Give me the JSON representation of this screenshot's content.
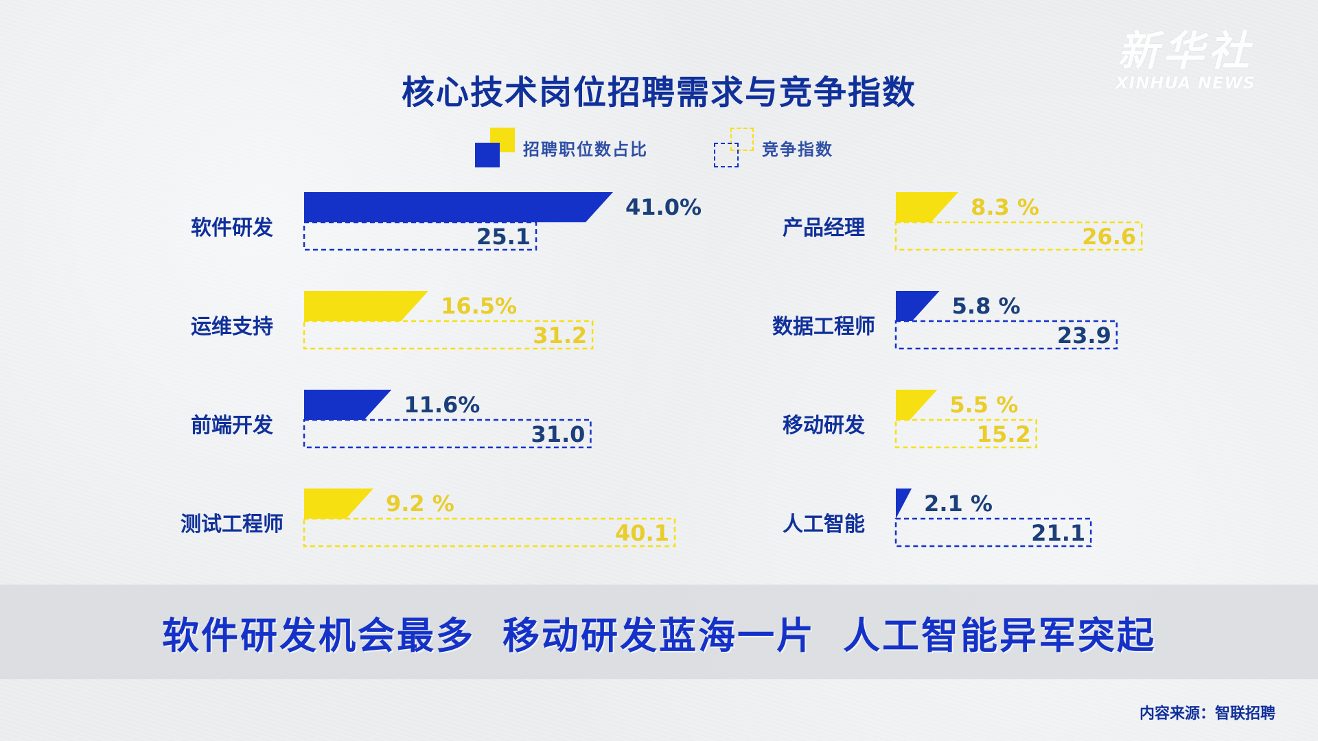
{
  "logo": {
    "cn": "新华社",
    "en": "XINHUA NEWS"
  },
  "title": "核心技术岗位招聘需求与竞争指数",
  "legend": {
    "share_label": "招聘职位数占比",
    "competition_label": "竞争指数"
  },
  "colors": {
    "blue": "#1432c8",
    "yellow": "#f6e012",
    "label": "#10309a"
  },
  "chart_data": {
    "type": "bar",
    "series_names": [
      "招聘职位数占比",
      "竞争指数"
    ],
    "items": [
      {
        "category": "软件研发",
        "share": 41.0,
        "share_label": "41.0%",
        "index": 25.1,
        "index_label": "25.1",
        "color": "blue"
      },
      {
        "category": "运维支持",
        "share": 16.5,
        "share_label": "16.5%",
        "index": 31.2,
        "index_label": "31.2",
        "color": "yellow"
      },
      {
        "category": "前端开发",
        "share": 11.6,
        "share_label": "11.6%",
        "index": 31.0,
        "index_label": "31.0",
        "color": "blue"
      },
      {
        "category": "测试工程师",
        "share": 9.2,
        "share_label": "9.2 %",
        "index": 40.1,
        "index_label": "40.1",
        "color": "yellow"
      },
      {
        "category": "产品经理",
        "share": 8.3,
        "share_label": "8.3 %",
        "index": 26.6,
        "index_label": "26.6",
        "color": "yellow"
      },
      {
        "category": "数据工程师",
        "share": 5.8,
        "share_label": "5.8 %",
        "index": 23.9,
        "index_label": "23.9",
        "color": "blue"
      },
      {
        "category": "移动研发",
        "share": 5.5,
        "share_label": "5.5 %",
        "index": 15.2,
        "index_label": "15.2",
        "color": "yellow"
      },
      {
        "category": "人工智能",
        "share": 2.1,
        "share_label": "2.1 %",
        "index": 21.1,
        "index_label": "21.1",
        "color": "blue"
      }
    ]
  },
  "banner": [
    "软件研发机会最多",
    "移动研发蓝海一片",
    "人工智能异军突起"
  ],
  "source": "内容来源：智联招聘"
}
